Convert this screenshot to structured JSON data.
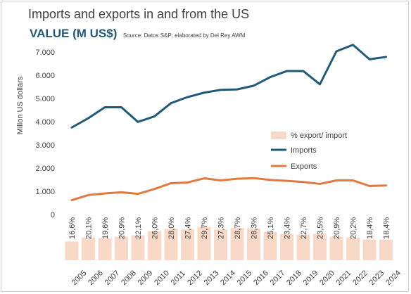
{
  "title": "Imports and exports in and from the US",
  "subtitle": "VALUE (M US$)",
  "source": "Source: Datos S&P; elaborated by Del Rey AWM",
  "colors": {
    "imports": "#1f5a7a",
    "exports": "#e07a3f",
    "bars": "#f8d9c8",
    "title_accent": "#1f5a7a"
  },
  "chart_data": {
    "type": "line",
    "title": "Imports and exports in and from the US",
    "subtitle": "VALUE (M US$)",
    "ylabel": "Millon US dollars",
    "ylim": [
      0,
      7000
    ],
    "yticks": [
      "0",
      "1.000",
      "2.000",
      "3.000",
      "4.000",
      "5.000",
      "6.000",
      "7.000"
    ],
    "ytick_values": [
      0,
      1000,
      2000,
      3000,
      4000,
      5000,
      6000,
      7000
    ],
    "grid": false,
    "legend_position": "center-right",
    "categories": [
      "2005",
      "2006",
      "2007",
      "2008",
      "2009",
      "2010",
      "2011",
      "2012",
      "2013",
      "2014",
      "2015",
      "2016",
      "2017",
      "2018",
      "2019",
      "2020",
      "2021",
      "2022",
      "2023",
      "2024"
    ],
    "series": [
      {
        "name": "Imports",
        "type": "line",
        "values": [
          3750,
          4150,
          4620,
          4620,
          3990,
          4230,
          4800,
          5060,
          5250,
          5370,
          5390,
          5550,
          5920,
          6180,
          6180,
          5610,
          7030,
          7310,
          6690,
          6790
        ]
      },
      {
        "name": "Exports",
        "type": "line",
        "values": [
          620,
          840,
          910,
          960,
          890,
          1100,
          1350,
          1380,
          1560,
          1470,
          1540,
          1570,
          1490,
          1450,
          1400,
          1320,
          1470,
          1470,
          1230,
          1250
        ]
      },
      {
        "name": "% export/ import",
        "type": "bar",
        "values": [
          16.6,
          20.1,
          19.6,
          20.9,
          22.1,
          26.0,
          28.0,
          27.4,
          29.7,
          27.3,
          28.7,
          28.3,
          25.1,
          23.4,
          22.7,
          23.5,
          20.9,
          20.2,
          18.4,
          18.4
        ],
        "labels": [
          "16,6%",
          "20,1%",
          "19,6%",
          "20,9%",
          "22,1%",
          "26,0%",
          "28,0%",
          "27,4%",
          "29,7%",
          "27,3%",
          "28,7%",
          "28,3%",
          "25,1%",
          "23,4%",
          "22,7%",
          "23,5%",
          "20,9%",
          "20,2%",
          "18,4%",
          "18,4%"
        ]
      }
    ],
    "legend": [
      {
        "label": "% export/ import",
        "marker": "bar"
      },
      {
        "label": "Imports",
        "marker": "line"
      },
      {
        "label": "Exports",
        "marker": "line"
      }
    ]
  }
}
